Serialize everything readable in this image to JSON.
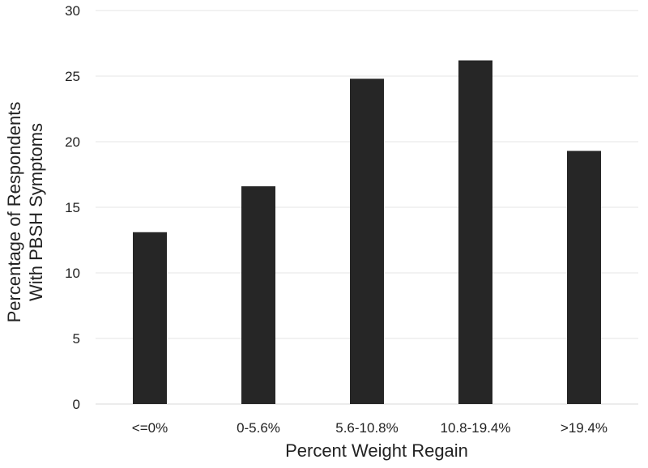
{
  "chart_data": {
    "type": "bar",
    "categories": [
      "<=0%",
      "0-5.6%",
      "5.6-10.8%",
      "10.8-19.4%",
      ">19.4%"
    ],
    "values": [
      13.1,
      16.6,
      24.8,
      26.2,
      19.3
    ],
    "title": "",
    "xlabel": "Percent Weight Regain",
    "ylabel_lines": [
      "Percentage of Respondents",
      "With PBSH Symptoms"
    ],
    "ylim": [
      0,
      30
    ],
    "yticks": [
      0,
      5,
      10,
      15,
      20,
      25,
      30
    ],
    "grid": true,
    "legend": "none",
    "bar_color": "#262626"
  }
}
